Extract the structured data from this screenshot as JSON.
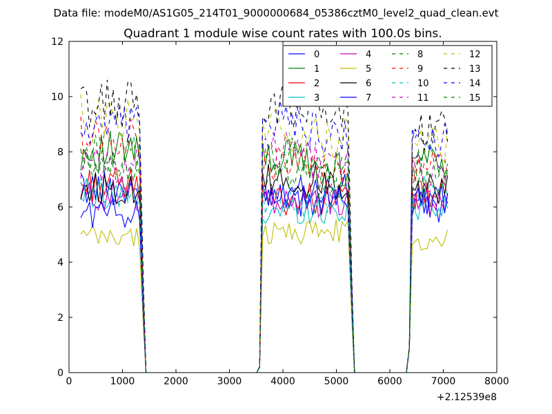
{
  "chart_data": {
    "type": "line",
    "suptitle": "Data file: modeM0/AS1G05_214T01_9000000684_05386cztM0_level2_quad_clean.evt",
    "title": "Quadrant 1 module wise count rates with 100.0s bins.",
    "xlabel": "",
    "ylabel": "",
    "offset_text": "+2.12539e8",
    "xlim": [
      0,
      8000
    ],
    "ylim": [
      0,
      12
    ],
    "xticks": [
      "0",
      "1000",
      "2000",
      "3000",
      "4000",
      "5000",
      "6000",
      "7000",
      "8000"
    ],
    "yticks": [
      "0",
      "2",
      "4",
      "6",
      "8",
      "10",
      "12"
    ],
    "legend": {
      "position": "top-right",
      "columns": 4
    },
    "segments": [
      {
        "start": 220,
        "end": 1330,
        "step": 55
      },
      {
        "start": 3620,
        "end": 5230,
        "step": 55
      },
      {
        "start": 6420,
        "end": 7100,
        "step": 55
      }
    ],
    "series": [
      {
        "name": "0",
        "color": "#0000ff",
        "dash": false,
        "levels": [
          6.7,
          6.6,
          6.0
        ]
      },
      {
        "name": "1",
        "color": "#008000",
        "dash": false,
        "levels": [
          8.0,
          7.6,
          7.8
        ]
      },
      {
        "name": "2",
        "color": "#ff0000",
        "dash": false,
        "levels": [
          6.8,
          6.3,
          6.4
        ]
      },
      {
        "name": "3",
        "color": "#00bfbf",
        "dash": false,
        "levels": [
          6.5,
          5.9,
          6.1
        ]
      },
      {
        "name": "4",
        "color": "#bf00bf",
        "dash": false,
        "levels": [
          6.4,
          6.2,
          6.3
        ]
      },
      {
        "name": "5",
        "color": "#bfbf00",
        "dash": false,
        "levels": [
          4.9,
          5.1,
          4.8
        ]
      },
      {
        "name": "6",
        "color": "#000000",
        "dash": false,
        "levels": [
          6.7,
          6.9,
          6.6
        ]
      },
      {
        "name": "7",
        "color": "#0000ff",
        "dash": false,
        "levels": [
          5.8,
          6.2,
          6.3
        ]
      },
      {
        "name": "8",
        "color": "#008000",
        "dash": true,
        "levels": [
          7.9,
          7.6,
          7.6
        ]
      },
      {
        "name": "9",
        "color": "#ff0000",
        "dash": true,
        "levels": [
          8.5,
          7.4,
          7.5
        ]
      },
      {
        "name": "10",
        "color": "#00bfbf",
        "dash": true,
        "levels": [
          6.5,
          6.2,
          6.5
        ]
      },
      {
        "name": "11",
        "color": "#bf00bf",
        "dash": true,
        "levels": [
          7.5,
          7.8,
          7.2
        ]
      },
      {
        "name": "12",
        "color": "#bfbf00",
        "dash": true,
        "levels": [
          9.2,
          8.6,
          8.2
        ]
      },
      {
        "name": "13",
        "color": "#000000",
        "dash": true,
        "levels": [
          9.7,
          9.4,
          8.9
        ]
      },
      {
        "name": "14",
        "color": "#0000ff",
        "dash": true,
        "levels": [
          8.8,
          8.8,
          8.3
        ]
      },
      {
        "name": "15",
        "color": "#008000",
        "dash": true,
        "levels": [
          7.5,
          7.1,
          7.0
        ]
      }
    ]
  }
}
